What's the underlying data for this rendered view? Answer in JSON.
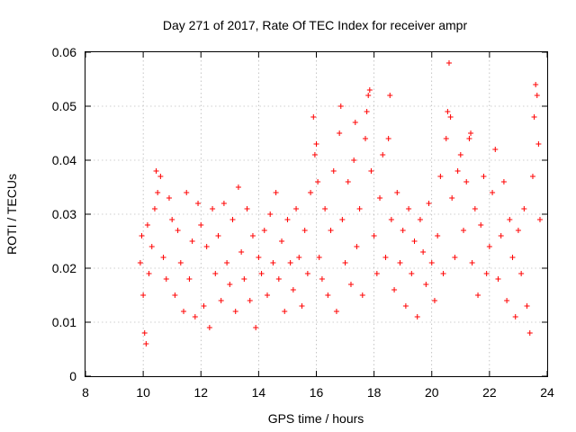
{
  "chart_data": {
    "type": "scatter",
    "title": "Day 271 of 2017, Rate Of TEC Index for receiver ampr",
    "xlabel": "GPS time / hours",
    "ylabel": "ROTI / TECUs",
    "xlim": [
      8,
      24
    ],
    "ylim": [
      0,
      0.06
    ],
    "x_ticks": [
      "8",
      "10",
      "12",
      "14",
      "16",
      "18",
      "20",
      "22",
      "24"
    ],
    "y_ticks": [
      "0",
      "0.01",
      "0.02",
      "0.03",
      "0.04",
      "0.05",
      "0.06"
    ],
    "grid": true,
    "marker": "+",
    "series_color": "#ff0000",
    "series": [
      {
        "points": [
          [
            9.9,
            0.021
          ],
          [
            9.95,
            0.026
          ],
          [
            10.0,
            0.015
          ],
          [
            10.05,
            0.008
          ],
          [
            10.1,
            0.006
          ],
          [
            10.15,
            0.028
          ],
          [
            10.2,
            0.019
          ],
          [
            10.3,
            0.024
          ],
          [
            10.4,
            0.031
          ],
          [
            10.45,
            0.038
          ],
          [
            10.5,
            0.034
          ],
          [
            10.6,
            0.037
          ],
          [
            10.7,
            0.022
          ],
          [
            10.8,
            0.018
          ],
          [
            10.9,
            0.033
          ],
          [
            11.0,
            0.029
          ],
          [
            11.1,
            0.015
          ],
          [
            11.2,
            0.027
          ],
          [
            11.3,
            0.021
          ],
          [
            11.4,
            0.012
          ],
          [
            11.5,
            0.034
          ],
          [
            11.6,
            0.018
          ],
          [
            11.7,
            0.025
          ],
          [
            11.8,
            0.011
          ],
          [
            11.9,
            0.032
          ],
          [
            12.0,
            0.028
          ],
          [
            12.1,
            0.013
          ],
          [
            12.2,
            0.024
          ],
          [
            12.3,
            0.009
          ],
          [
            12.4,
            0.031
          ],
          [
            12.5,
            0.019
          ],
          [
            12.6,
            0.026
          ],
          [
            12.7,
            0.014
          ],
          [
            12.8,
            0.032
          ],
          [
            12.9,
            0.021
          ],
          [
            13.0,
            0.017
          ],
          [
            13.1,
            0.029
          ],
          [
            13.2,
            0.012
          ],
          [
            13.3,
            0.035
          ],
          [
            13.4,
            0.023
          ],
          [
            13.5,
            0.018
          ],
          [
            13.6,
            0.031
          ],
          [
            13.7,
            0.014
          ],
          [
            13.8,
            0.026
          ],
          [
            13.9,
            0.009
          ],
          [
            14.0,
            0.022
          ],
          [
            14.1,
            0.019
          ],
          [
            14.2,
            0.027
          ],
          [
            14.3,
            0.015
          ],
          [
            14.4,
            0.03
          ],
          [
            14.5,
            0.021
          ],
          [
            14.6,
            0.034
          ],
          [
            14.7,
            0.018
          ],
          [
            14.8,
            0.025
          ],
          [
            14.9,
            0.012
          ],
          [
            15.0,
            0.029
          ],
          [
            15.1,
            0.021
          ],
          [
            15.2,
            0.016
          ],
          [
            15.3,
            0.031
          ],
          [
            15.4,
            0.022
          ],
          [
            15.5,
            0.013
          ],
          [
            15.6,
            0.027
          ],
          [
            15.7,
            0.019
          ],
          [
            15.8,
            0.034
          ],
          [
            15.9,
            0.048
          ],
          [
            15.95,
            0.041
          ],
          [
            16.0,
            0.043
          ],
          [
            16.05,
            0.036
          ],
          [
            16.1,
            0.022
          ],
          [
            16.2,
            0.018
          ],
          [
            16.3,
            0.031
          ],
          [
            16.4,
            0.015
          ],
          [
            16.5,
            0.027
          ],
          [
            16.6,
            0.038
          ],
          [
            16.7,
            0.012
          ],
          [
            16.8,
            0.045
          ],
          [
            16.85,
            0.05
          ],
          [
            16.9,
            0.029
          ],
          [
            17.0,
            0.021
          ],
          [
            17.1,
            0.036
          ],
          [
            17.2,
            0.017
          ],
          [
            17.3,
            0.04
          ],
          [
            17.35,
            0.047
          ],
          [
            17.4,
            0.024
          ],
          [
            17.5,
            0.031
          ],
          [
            17.6,
            0.015
          ],
          [
            17.7,
            0.044
          ],
          [
            17.75,
            0.049
          ],
          [
            17.8,
            0.052
          ],
          [
            17.85,
            0.053
          ],
          [
            17.9,
            0.038
          ],
          [
            18.0,
            0.026
          ],
          [
            18.1,
            0.019
          ],
          [
            18.2,
            0.033
          ],
          [
            18.3,
            0.041
          ],
          [
            18.4,
            0.022
          ],
          [
            18.5,
            0.044
          ],
          [
            18.55,
            0.052
          ],
          [
            18.6,
            0.029
          ],
          [
            18.7,
            0.016
          ],
          [
            18.8,
            0.034
          ],
          [
            18.9,
            0.021
          ],
          [
            19.0,
            0.027
          ],
          [
            19.1,
            0.013
          ],
          [
            19.2,
            0.031
          ],
          [
            19.3,
            0.019
          ],
          [
            19.4,
            0.025
          ],
          [
            19.5,
            0.011
          ],
          [
            19.6,
            0.029
          ],
          [
            19.7,
            0.023
          ],
          [
            19.8,
            0.017
          ],
          [
            19.9,
            0.032
          ],
          [
            20.0,
            0.021
          ],
          [
            20.1,
            0.014
          ],
          [
            20.2,
            0.026
          ],
          [
            20.3,
            0.037
          ],
          [
            20.4,
            0.019
          ],
          [
            20.5,
            0.044
          ],
          [
            20.55,
            0.049
          ],
          [
            20.6,
            0.058
          ],
          [
            20.65,
            0.048
          ],
          [
            20.7,
            0.033
          ],
          [
            20.8,
            0.022
          ],
          [
            20.9,
            0.038
          ],
          [
            21.0,
            0.041
          ],
          [
            21.1,
            0.027
          ],
          [
            21.2,
            0.036
          ],
          [
            21.3,
            0.044
          ],
          [
            21.35,
            0.045
          ],
          [
            21.4,
            0.021
          ],
          [
            21.5,
            0.031
          ],
          [
            21.6,
            0.015
          ],
          [
            21.7,
            0.028
          ],
          [
            21.8,
            0.037
          ],
          [
            21.9,
            0.019
          ],
          [
            22.0,
            0.024
          ],
          [
            22.1,
            0.034
          ],
          [
            22.2,
            0.042
          ],
          [
            22.3,
            0.018
          ],
          [
            22.4,
            0.026
          ],
          [
            22.5,
            0.036
          ],
          [
            22.6,
            0.014
          ],
          [
            22.7,
            0.029
          ],
          [
            22.8,
            0.022
          ],
          [
            22.9,
            0.011
          ],
          [
            23.0,
            0.027
          ],
          [
            23.1,
            0.019
          ],
          [
            23.2,
            0.031
          ],
          [
            23.3,
            0.013
          ],
          [
            23.4,
            0.008
          ],
          [
            23.5,
            0.037
          ],
          [
            23.55,
            0.048
          ],
          [
            23.6,
            0.054
          ],
          [
            23.65,
            0.052
          ],
          [
            23.7,
            0.043
          ],
          [
            23.75,
            0.029
          ]
        ]
      }
    ]
  }
}
